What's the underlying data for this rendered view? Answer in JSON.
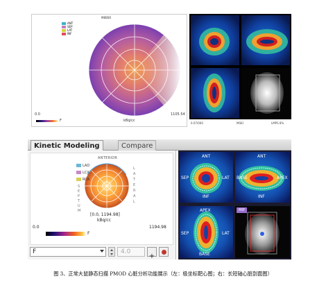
{
  "top_bullseye": {
    "title": "MBBSR",
    "legend": [
      "ANT",
      "SEP",
      "LAT",
      "INF"
    ],
    "min_label": "0.0",
    "max_label": "1105.54",
    "unit_label": "kBq/cc",
    "colorbar_end_label": "F"
  },
  "top_scans": {
    "footer_left": "0.07/000",
    "footer_mid": "MSKI",
    "footer_right": "LMPS 8%"
  },
  "tabs": [
    {
      "label": "Kinetic Modeling"
    },
    {
      "label": "Compare"
    }
  ],
  "bullseye": {
    "labels": {
      "ant": "ANTERIOR",
      "lad": "LAD",
      "lcx": "LCX",
      "rca": "RCA"
    },
    "side_left": [
      "S",
      "E",
      "P",
      "T",
      "U",
      "M"
    ],
    "side_right": [
      "L",
      "A",
      "T",
      "E",
      "R",
      "A",
      "L"
    ],
    "range_label": "[0.0, 1194.98]",
    "unit_label": "kBq/cc",
    "min_label": "0.0",
    "max_label": "1194.98",
    "colorbar_end": "F",
    "dropdown_value": "F",
    "number_value": "4.0",
    "plus_label": "+"
  },
  "scans": {
    "sa": {
      "top": "ANT",
      "left": "SEP",
      "right": "LAT",
      "bottom": "INF"
    },
    "hla": {
      "top": "ANT",
      "left": "BASE",
      "right": "APEX",
      "bottom": "INF"
    },
    "vla": {
      "top": "APEX",
      "left": "SEP",
      "right": "LAT",
      "bottom": "BASE"
    },
    "mip": {
      "tag": "MIP"
    }
  },
  "caption": "图 3、正常大鼠静态扫描 PMOD 心脏分析功能展示（左：极坐标靶心图；右：长短轴心脏剖面图）",
  "colors": {
    "accent": "#9a6fd0",
    "record": "#c0392b"
  }
}
